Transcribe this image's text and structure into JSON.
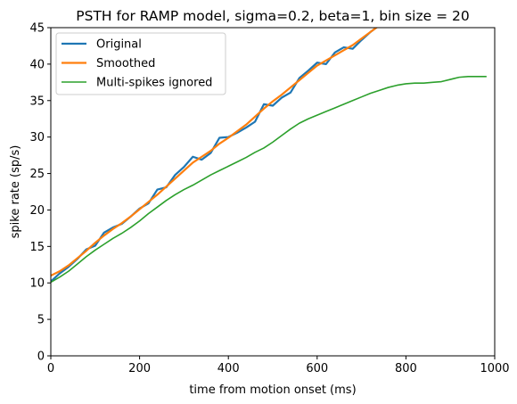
{
  "chart_data": {
    "type": "line",
    "title": "PSTH for RAMP model, sigma=0.2, beta=1, bin size = 20",
    "xlabel": "time from motion onset (ms)",
    "ylabel": "spike rate (sp/s)",
    "xlim": [
      0,
      1000
    ],
    "ylim": [
      0,
      45
    ],
    "xticks": [
      0,
      200,
      400,
      600,
      800,
      1000
    ],
    "yticks": [
      0,
      5,
      10,
      15,
      20,
      25,
      30,
      35,
      40,
      45
    ],
    "grid": false,
    "legend_position": "top-left",
    "series": [
      {
        "name": "Original",
        "color": "#1f77b4",
        "x": [
          0,
          20,
          40,
          60,
          80,
          100,
          120,
          140,
          160,
          180,
          200,
          220,
          240,
          260,
          280,
          300,
          320,
          340,
          360,
          380,
          400,
          420,
          440,
          460,
          480,
          500,
          520,
          540,
          560,
          580,
          600,
          620,
          640,
          660,
          680,
          700,
          720,
          740
        ],
        "y": [
          10.2,
          11.3,
          12.2,
          13.3,
          14.6,
          15.1,
          16.9,
          17.6,
          18.1,
          19.1,
          20.2,
          20.9,
          22.8,
          23.1,
          24.8,
          25.9,
          27.3,
          26.9,
          27.8,
          29.9,
          30.0,
          30.6,
          31.3,
          32.1,
          34.5,
          34.3,
          35.4,
          36.1,
          38.1,
          39.1,
          40.2,
          40.0,
          41.6,
          42.3,
          42.1,
          43.3,
          44.4,
          45.3
        ]
      },
      {
        "name": "Smoothed",
        "color": "#ff7f0e",
        "x": [
          0,
          20,
          40,
          60,
          80,
          100,
          120,
          140,
          160,
          180,
          200,
          220,
          240,
          260,
          280,
          300,
          320,
          340,
          360,
          380,
          400,
          420,
          440,
          460,
          480,
          500,
          520,
          540,
          560,
          580,
          600,
          620,
          640,
          660,
          680,
          700,
          720,
          740
        ],
        "y": [
          11.0,
          11.6,
          12.4,
          13.4,
          14.4,
          15.5,
          16.5,
          17.4,
          18.2,
          19.1,
          20.1,
          21.1,
          22.1,
          23.2,
          24.3,
          25.4,
          26.5,
          27.3,
          28.1,
          29.1,
          29.9,
          30.8,
          31.7,
          32.8,
          33.9,
          34.9,
          35.8,
          36.8,
          37.8,
          38.8,
          39.8,
          40.5,
          41.2,
          41.9,
          42.6,
          43.5,
          44.4,
          45.3
        ]
      },
      {
        "name": "Multi-spikes ignored",
        "color": "#2ca02c",
        "x": [
          0,
          20,
          40,
          60,
          80,
          100,
          120,
          140,
          160,
          180,
          200,
          220,
          240,
          260,
          280,
          300,
          320,
          340,
          360,
          380,
          400,
          420,
          440,
          460,
          480,
          500,
          520,
          540,
          560,
          580,
          600,
          620,
          640,
          660,
          680,
          700,
          720,
          740,
          760,
          780,
          800,
          820,
          840,
          860,
          880,
          900,
          920,
          940,
          960,
          980
        ],
        "y": [
          10.1,
          10.8,
          11.6,
          12.6,
          13.6,
          14.5,
          15.3,
          16.1,
          16.8,
          17.6,
          18.5,
          19.5,
          20.4,
          21.3,
          22.1,
          22.8,
          23.4,
          24.1,
          24.8,
          25.4,
          26.0,
          26.6,
          27.2,
          27.9,
          28.5,
          29.3,
          30.2,
          31.1,
          31.9,
          32.5,
          33.0,
          33.5,
          34.0,
          34.5,
          35.0,
          35.5,
          36.0,
          36.4,
          36.8,
          37.1,
          37.3,
          37.4,
          37.4,
          37.5,
          37.6,
          37.9,
          38.2,
          38.3,
          38.3,
          38.3
        ]
      }
    ]
  }
}
